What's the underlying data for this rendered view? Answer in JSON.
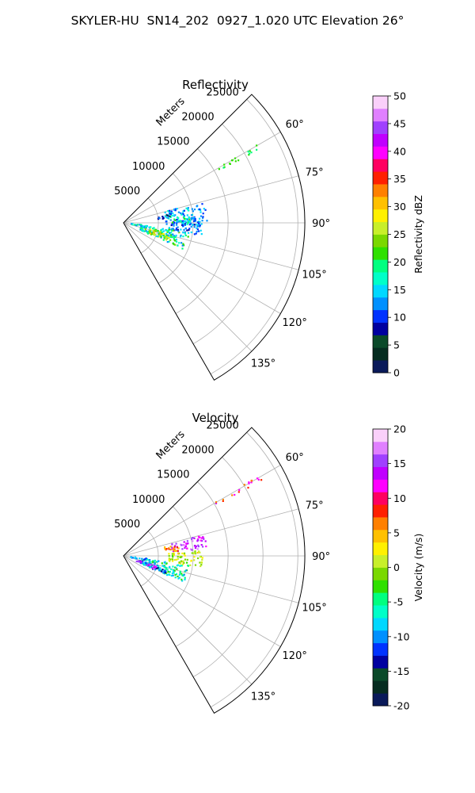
{
  "figure": {
    "title": "SKYLER-HU  SN14_202  0927_1.020 UTC Elevation 26°"
  },
  "chart_data": [
    {
      "type": "heatmap",
      "projection": "polar-sector",
      "title": "Reflectivity",
      "radial_label": "Meters",
      "r_ticks": [
        5000,
        10000,
        15000,
        20000,
        25000
      ],
      "r_max": 26000,
      "theta_range_deg": [
        45,
        150
      ],
      "theta_ticks_deg": [
        60,
        75,
        90,
        105,
        120,
        135
      ],
      "theta_tick_labels": [
        "60°",
        "75°",
        "90°",
        "105°",
        "120°",
        "135°"
      ],
      "grid": true,
      "colorbar": {
        "label": "Reflectivity dBZ",
        "range": [
          0,
          50
        ],
        "ticks": [
          0,
          5,
          10,
          15,
          20,
          25,
          30,
          35,
          40,
          45,
          50
        ],
        "colors": [
          "#0a1a5a",
          "#062c20",
          "#0b4a2a",
          "#0000a0",
          "#0033ff",
          "#0090ff",
          "#00d8ff",
          "#00ffc8",
          "#00ff80",
          "#2fe000",
          "#7ad800",
          "#c8ef2a",
          "#fff000",
          "#ffc000",
          "#ff8000",
          "#ff2000",
          "#ff0060",
          "#ff00ff",
          "#c000ff",
          "#a040ff",
          "#e080ff",
          "#fad0fa"
        ]
      },
      "clusters": [
        {
          "az": [
            59.5,
            61.5
          ],
          "r": [
            15000,
            23000
          ],
          "value": 21,
          "jitter": 2
        },
        {
          "az": [
            75,
            92
          ],
          "r": [
            6000,
            12000
          ],
          "value": 13,
          "jitter": 4
        },
        {
          "az": [
            88,
            99
          ],
          "r": [
            6500,
            11500
          ],
          "value": 12,
          "jitter": 4
        },
        {
          "az": [
            84,
            90
          ],
          "r": [
            7000,
            9500
          ],
          "value": 17,
          "jitter": 4
        },
        {
          "az": [
            98,
            114
          ],
          "r": [
            2500,
            9500
          ],
          "value": 18,
          "jitter": 6
        },
        {
          "az": [
            103,
            112
          ],
          "r": [
            3000,
            7000
          ],
          "value": 26,
          "jitter": 4
        },
        {
          "az": [
            96,
            102
          ],
          "r": [
            1000,
            3500
          ],
          "value": 16,
          "jitter": 4
        },
        {
          "az": [
            80,
            84
          ],
          "r": [
            5000,
            7500
          ],
          "value": 8,
          "jitter": 4
        }
      ]
    },
    {
      "type": "heatmap",
      "projection": "polar-sector",
      "title": "Velocity",
      "radial_label": "Meters",
      "r_ticks": [
        5000,
        10000,
        15000,
        20000,
        25000
      ],
      "r_max": 26000,
      "theta_range_deg": [
        45,
        150
      ],
      "theta_ticks_deg": [
        60,
        75,
        90,
        105,
        120,
        135
      ],
      "theta_tick_labels": [
        "60°",
        "75°",
        "90°",
        "105°",
        "120°",
        "135°"
      ],
      "grid": true,
      "colorbar": {
        "label": "Velocity (m/s)",
        "range": [
          -20,
          20
        ],
        "ticks": [
          -20,
          -15,
          -10,
          -5,
          0,
          5,
          10,
          15,
          20
        ],
        "colors": [
          "#0a1a5a",
          "#062c20",
          "#0b4a2a",
          "#0000a0",
          "#0033ff",
          "#0090ff",
          "#00d8ff",
          "#00ffc8",
          "#00ff80",
          "#2fe000",
          "#7ad800",
          "#c8ef2a",
          "#fff000",
          "#ffc000",
          "#ff8000",
          "#ff2000",
          "#ff0060",
          "#ff00ff",
          "#c000ff",
          "#a040ff",
          "#e080ff",
          "#fad0fa"
        ]
      },
      "clusters": [
        {
          "az": [
            59.5,
            61.5
          ],
          "r": [
            15000,
            23000
          ],
          "value": 10,
          "jitter": 4
        },
        {
          "az": [
            75,
            85
          ],
          "r": [
            7000,
            12000
          ],
          "value": 14,
          "jitter": 3
        },
        {
          "az": [
            78,
            86
          ],
          "r": [
            6000,
            8000
          ],
          "value": 6,
          "jitter": 3
        },
        {
          "az": [
            86,
            98
          ],
          "r": [
            6500,
            11500
          ],
          "value": 1,
          "jitter": 3
        },
        {
          "az": [
            98,
            114
          ],
          "r": [
            2500,
            9500
          ],
          "value": -6,
          "jitter": 4
        },
        {
          "az": [
            106,
            114
          ],
          "r": [
            2500,
            6500
          ],
          "value": -11,
          "jitter": 3
        },
        {
          "az": [
            107,
            113
          ],
          "r": [
            2000,
            5000
          ],
          "value": 14,
          "jitter": 3
        },
        {
          "az": [
            96,
            102
          ],
          "r": [
            1000,
            3500
          ],
          "value": -9,
          "jitter": 3
        }
      ]
    }
  ]
}
